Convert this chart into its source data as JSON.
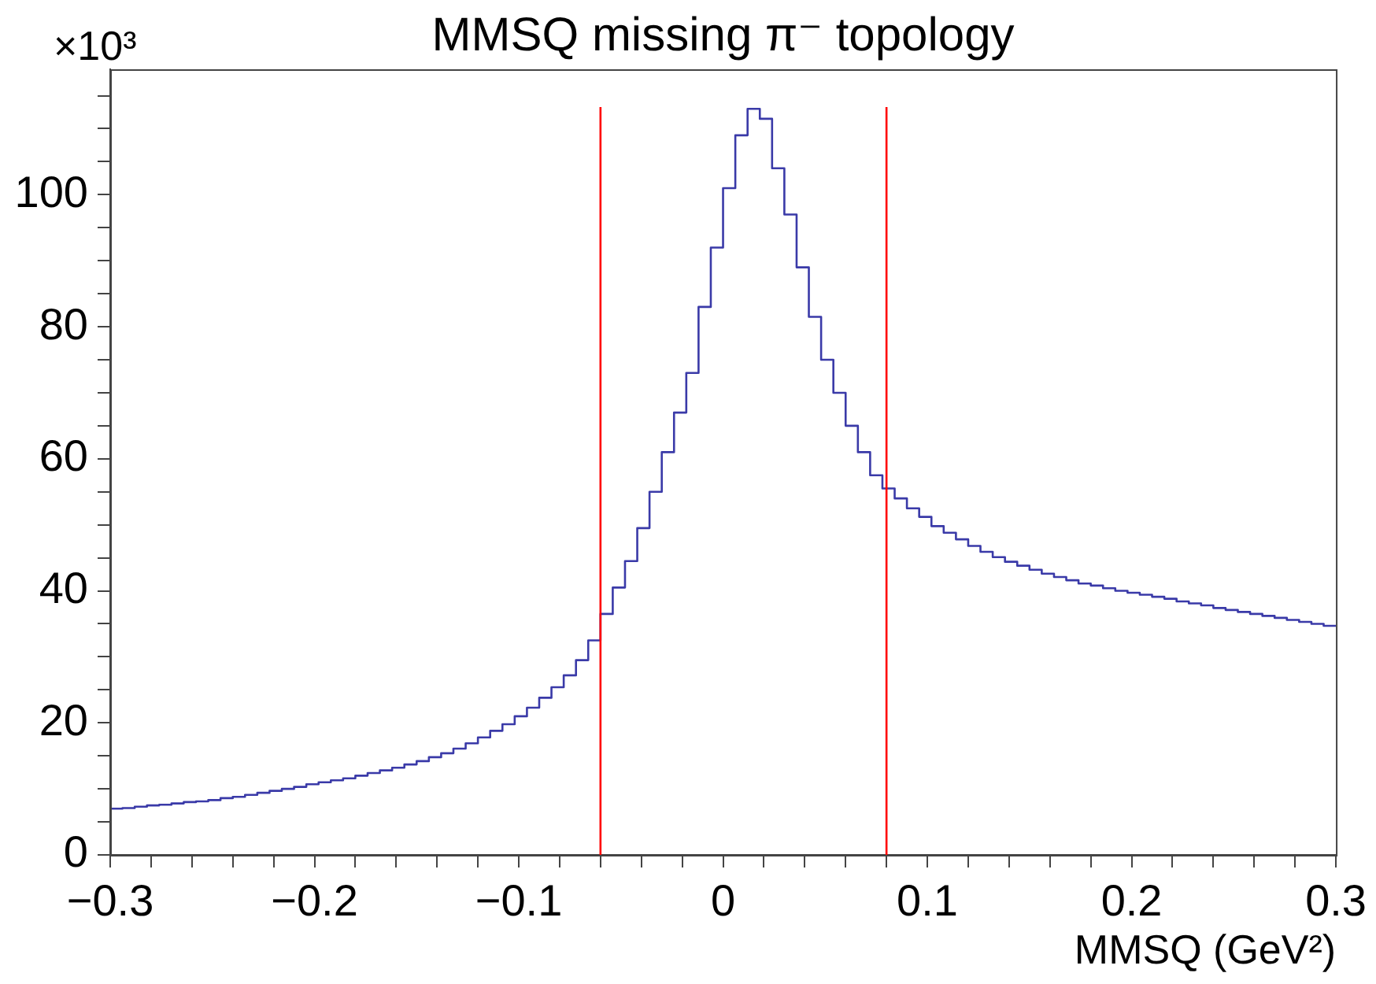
{
  "chart_data": {
    "type": "histogram",
    "title": "MMSQ missing π⁻ topology",
    "xlabel": "MMSQ (GeV²)",
    "annotations": [
      "×10³"
    ],
    "color": "#3a3aa8",
    "bins": [
      -0.3,
      -0.294,
      -0.288,
      -0.282,
      -0.276,
      -0.27,
      -0.264,
      -0.258,
      -0.252,
      -0.246,
      -0.24,
      -0.234,
      -0.228,
      -0.222,
      -0.216,
      -0.21,
      -0.204,
      -0.198,
      -0.192,
      -0.186,
      -0.18,
      -0.174,
      -0.168,
      -0.162,
      -0.156,
      -0.15,
      -0.144,
      -0.138,
      -0.132,
      -0.126,
      -0.12,
      -0.114,
      -0.108,
      -0.102,
      -0.096,
      -0.09,
      -0.084,
      -0.078,
      -0.072,
      -0.066,
      -0.06,
      -0.054,
      -0.048,
      -0.042,
      -0.036,
      -0.03,
      -0.024,
      -0.018,
      -0.012,
      -0.006,
      0,
      0.006,
      0.012,
      0.018,
      0.024,
      0.03,
      0.036,
      0.042,
      0.048,
      0.054,
      0.06,
      0.066,
      0.072,
      0.078,
      0.084,
      0.09,
      0.096,
      0.102,
      0.108,
      0.114,
      0.12,
      0.126,
      0.132,
      0.138,
      0.144,
      0.15,
      0.156,
      0.162,
      0.168,
      0.174,
      0.18,
      0.186,
      0.192,
      0.198,
      0.204,
      0.21,
      0.216,
      0.222,
      0.228,
      0.234,
      0.24,
      0.246,
      0.252,
      0.258,
      0.264,
      0.27,
      0.276,
      0.282,
      0.288,
      0.294,
      0.3
    ],
    "values": [
      7.0,
      7.1,
      7.3,
      7.5,
      7.6,
      7.8,
      8.0,
      8.1,
      8.3,
      8.6,
      8.8,
      9.1,
      9.4,
      9.7,
      10.0,
      10.3,
      10.7,
      11.0,
      11.3,
      11.6,
      12.0,
      12.4,
      12.8,
      13.2,
      13.7,
      14.2,
      14.8,
      15.4,
      16.1,
      16.9,
      17.8,
      18.8,
      19.8,
      21.0,
      22.3,
      23.8,
      25.4,
      27.2,
      29.5,
      32.5,
      36.5,
      40.5,
      44.5,
      49.5,
      55,
      61,
      67,
      73,
      83,
      92,
      101,
      109,
      113,
      111.5,
      104,
      97,
      89,
      81.5,
      75,
      70,
      65,
      61,
      57.5,
      55.5,
      54,
      52.5,
      51.2,
      49.8,
      48.8,
      47.8,
      46.8,
      45.9,
      45.1,
      44.4,
      43.8,
      43.2,
      42.6,
      42.1,
      41.6,
      41.1,
      40.8,
      40.4,
      40.0,
      39.7,
      39.4,
      39.1,
      38.8,
      38.4,
      38.1,
      37.8,
      37.4,
      37.1,
      36.8,
      36.5,
      36.2,
      35.9,
      35.6,
      35.3,
      35.0,
      34.7
    ],
    "xlim": [
      -0.3,
      0.3
    ],
    "xticks": [
      {
        "value": -0.3,
        "label": "−0.3"
      },
      {
        "value": -0.28,
        "label": null
      },
      {
        "value": -0.26,
        "label": null
      },
      {
        "value": -0.24,
        "label": null
      },
      {
        "value": -0.22,
        "label": null
      },
      {
        "value": -0.2,
        "label": "−0.2"
      },
      {
        "value": -0.18,
        "label": null
      },
      {
        "value": -0.16,
        "label": null
      },
      {
        "value": -0.14,
        "label": null
      },
      {
        "value": -0.12,
        "label": null
      },
      {
        "value": -0.1,
        "label": "−0.1"
      },
      {
        "value": -0.08,
        "label": null
      },
      {
        "value": -0.06,
        "label": null
      },
      {
        "value": -0.04,
        "label": null
      },
      {
        "value": -0.02,
        "label": null
      },
      0,
      {
        "value": 0.02,
        "label": null
      },
      {
        "value": 0.04,
        "label": null
      },
      {
        "value": 0.06,
        "label": null
      },
      {
        "value": 0.08,
        "label": null
      },
      0.1,
      {
        "value": 0.12,
        "label": null
      },
      {
        "value": 0.14,
        "label": null
      },
      {
        "value": 0.16,
        "label": null
      },
      {
        "value": 0.18,
        "label": null
      },
      0.2,
      {
        "value": 0.22,
        "label": null
      },
      {
        "value": 0.24,
        "label": null
      },
      {
        "value": 0.26,
        "label": null
      },
      {
        "value": 0.28,
        "label": null
      },
      0.3
    ],
    "ylim": [
      0,
      119
    ],
    "yticks": [
      0,
      {
        "value": 5,
        "label": null
      },
      {
        "value": 10,
        "label": null
      },
      {
        "value": 15,
        "label": null
      },
      20,
      {
        "value": 25,
        "label": null
      },
      {
        "value": 30,
        "label": null
      },
      {
        "value": 35,
        "label": null
      },
      40,
      {
        "value": 45,
        "label": null
      },
      {
        "value": 50,
        "label": null
      },
      {
        "value": 55,
        "label": null
      },
      60,
      {
        "value": 65,
        "label": null
      },
      {
        "value": 70,
        "label": null
      },
      {
        "value": 75,
        "label": null
      },
      80,
      {
        "value": 85,
        "label": null
      },
      {
        "value": 90,
        "label": null
      },
      {
        "value": 95,
        "label": null
      },
      100,
      {
        "value": 105,
        "label": null
      },
      {
        "value": 110,
        "label": null
      },
      {
        "value": 115,
        "label": null
      }
    ],
    "ref_lines": [
      {
        "axis": "x",
        "value": -0.06,
        "color": "#ff0000"
      },
      {
        "axis": "x",
        "value": 0.08,
        "color": "#ff0000"
      }
    ]
  }
}
